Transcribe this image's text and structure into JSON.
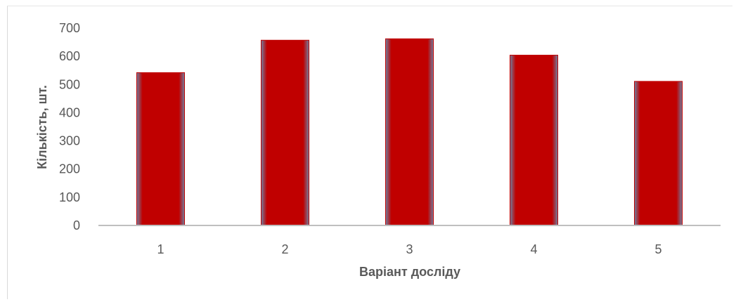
{
  "chart_data": {
    "type": "bar",
    "categories": [
      "1",
      "2",
      "3",
      "4",
      "5"
    ],
    "values": [
      542,
      657,
      662,
      604,
      511
    ],
    "title": "",
    "xlabel": "Варіант досліду",
    "ylabel": "Кількість, шт.",
    "ylim": [
      0,
      700
    ],
    "yticks": [
      0,
      100,
      200,
      300,
      400,
      500,
      600,
      700
    ],
    "grid": false,
    "legend": "none",
    "colors": {
      "bar_fill": "#c00000",
      "bar_edge": "#7a8aa6",
      "axis_line": "#bfbfbf",
      "text": "#595959"
    }
  }
}
